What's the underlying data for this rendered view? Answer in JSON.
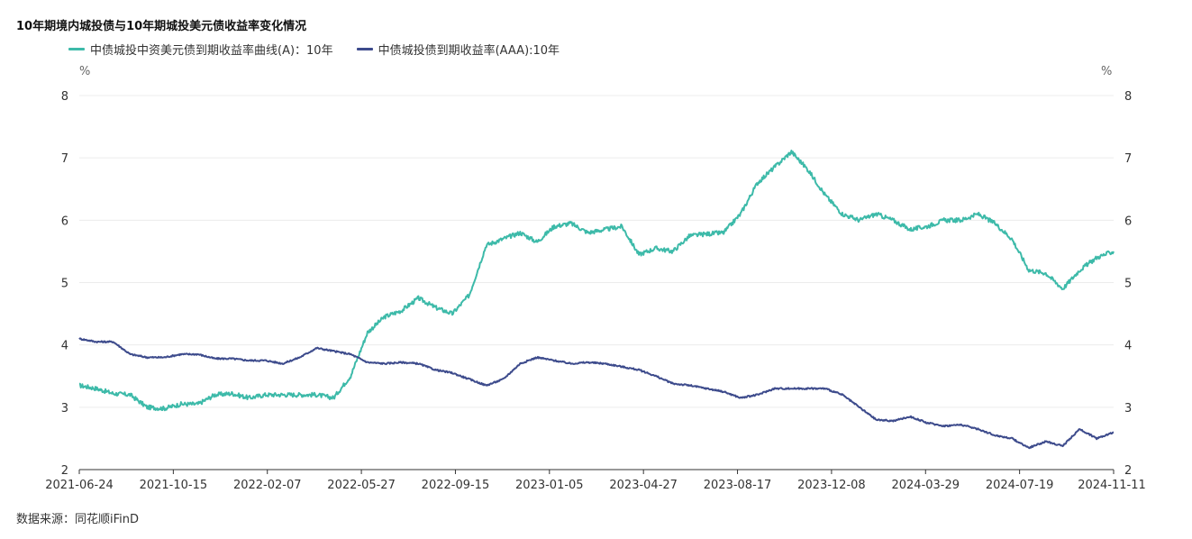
{
  "chart_data": {
    "type": "line",
    "title": "10年期境内城投债与10年期城投美元债收益率变化情况",
    "y_unit_left": "%",
    "y_unit_right": "%",
    "ylim": [
      2,
      8
    ],
    "yticks": [
      "2",
      "3",
      "4",
      "5",
      "6",
      "7",
      "8"
    ],
    "x_ticks": [
      "2021-06-24",
      "2021-10-15",
      "2022-02-07",
      "2022-05-27",
      "2022-09-15",
      "2023-01-05",
      "2023-04-27",
      "2023-08-17",
      "2023-12-08",
      "2024-03-29",
      "2024-07-19",
      "2024-11-11"
    ],
    "series": [
      {
        "name": "中债城投中资美元债到期收益率曲线(A)：10年",
        "color": "#3dbaa9",
        "values": [
          3.35,
          3.3,
          3.22,
          3.2,
          3.0,
          2.98,
          3.05,
          3.05,
          3.2,
          3.22,
          3.15,
          3.2,
          3.2,
          3.2,
          3.2,
          3.15,
          3.5,
          4.2,
          4.45,
          4.55,
          4.75,
          4.6,
          4.5,
          4.8,
          5.6,
          5.7,
          5.8,
          5.65,
          5.9,
          5.95,
          5.8,
          5.85,
          5.9,
          5.45,
          5.55,
          5.5,
          5.75,
          5.78,
          5.8,
          6.1,
          6.6,
          6.85,
          7.1,
          6.8,
          6.4,
          6.1,
          6.0,
          6.1,
          6.0,
          5.85,
          5.9,
          6.0,
          6.0,
          6.1,
          5.95,
          5.7,
          5.2,
          5.15,
          4.9,
          5.2,
          5.4,
          5.5
        ]
      },
      {
        "name": "中债城投债到期收益率(AAA):10年",
        "color": "#3d4b8c",
        "values": [
          4.1,
          4.05,
          4.05,
          3.85,
          3.8,
          3.8,
          3.85,
          3.85,
          3.78,
          3.78,
          3.75,
          3.75,
          3.7,
          3.8,
          3.95,
          3.9,
          3.85,
          3.72,
          3.7,
          3.72,
          3.7,
          3.6,
          3.55,
          3.45,
          3.35,
          3.45,
          3.7,
          3.8,
          3.75,
          3.7,
          3.72,
          3.7,
          3.65,
          3.6,
          3.5,
          3.38,
          3.35,
          3.3,
          3.25,
          3.15,
          3.2,
          3.3,
          3.3,
          3.3,
          3.3,
          3.2,
          3.0,
          2.8,
          2.78,
          2.85,
          2.75,
          2.7,
          2.72,
          2.65,
          2.55,
          2.5,
          2.35,
          2.45,
          2.38,
          2.65,
          2.5,
          2.6
        ]
      }
    ],
    "source": "数据来源：同花顺iFinD"
  }
}
